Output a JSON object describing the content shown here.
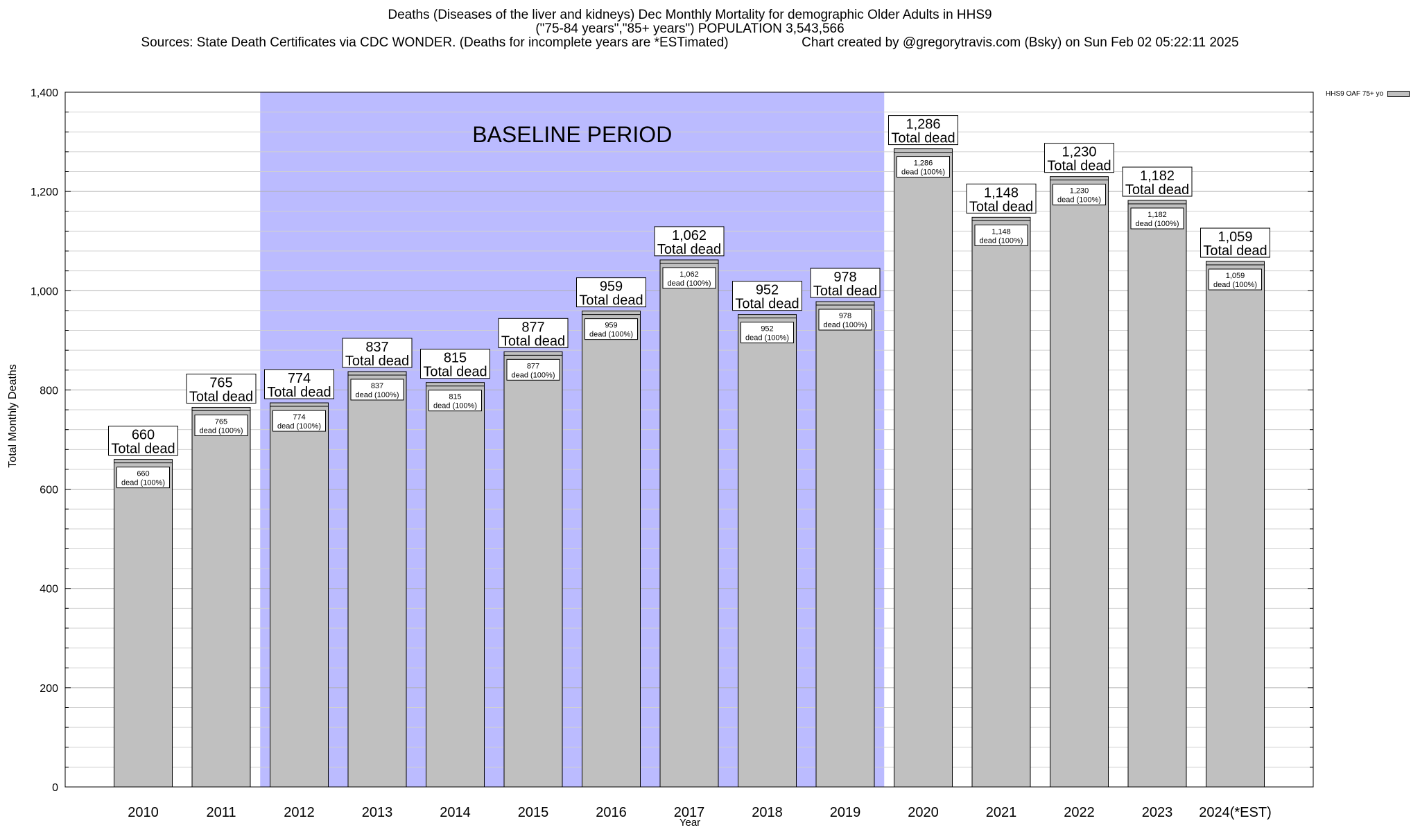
{
  "chart_data": {
    "type": "bar",
    "title": "Deaths (Diseases of the liver and kidneys) Dec Monthly Mortality for demographic Older Adults in HHS9",
    "subtitle": "(\"75-84 years\",\"85+ years\") POPULATION 3,543,566",
    "sources": "Sources: State Death Certificates via CDC WONDER. (Deaths for incomplete years are *ESTimated)",
    "credit": "Chart created by @gregorytravis.com (Bsky) on Sun Feb 02 05:22:11 2025",
    "xlabel": "Year",
    "ylabel": "Total Monthly Deaths",
    "ylim": [
      0,
      1400
    ],
    "yticks": [
      0,
      200,
      400,
      600,
      800,
      1000,
      1200,
      1400
    ],
    "ytick_labels": [
      "0",
      "200",
      "400",
      "600",
      "800",
      "1,000",
      "1,200",
      "1,400"
    ],
    "grid": true,
    "legend_position": "top-right",
    "categories": [
      "2010",
      "2011",
      "2012",
      "2013",
      "2014",
      "2015",
      "2016",
      "2017",
      "2018",
      "2019",
      "2020",
      "2021",
      "2022",
      "2023",
      "2024(*EST)"
    ],
    "series": [
      {
        "name": "HHS9 OAF 75+ yo",
        "values": [
          660,
          765,
          774,
          837,
          815,
          877,
          959,
          1062,
          952,
          978,
          1286,
          1148,
          1230,
          1182,
          1059
        ],
        "value_labels": [
          "660",
          "765",
          "774",
          "837",
          "815",
          "877",
          "959",
          "1,062",
          "952",
          "978",
          "1,286",
          "1,148",
          "1,230",
          "1,182",
          "1,059"
        ],
        "color": "#c0c0c0"
      }
    ],
    "total_label_suffix": "Total dead",
    "inner_label_suffix": "dead (100%)",
    "baseline": {
      "label": "BASELINE PERIOD",
      "start": "2012",
      "end": "2019",
      "color": "#bbbbff"
    }
  }
}
